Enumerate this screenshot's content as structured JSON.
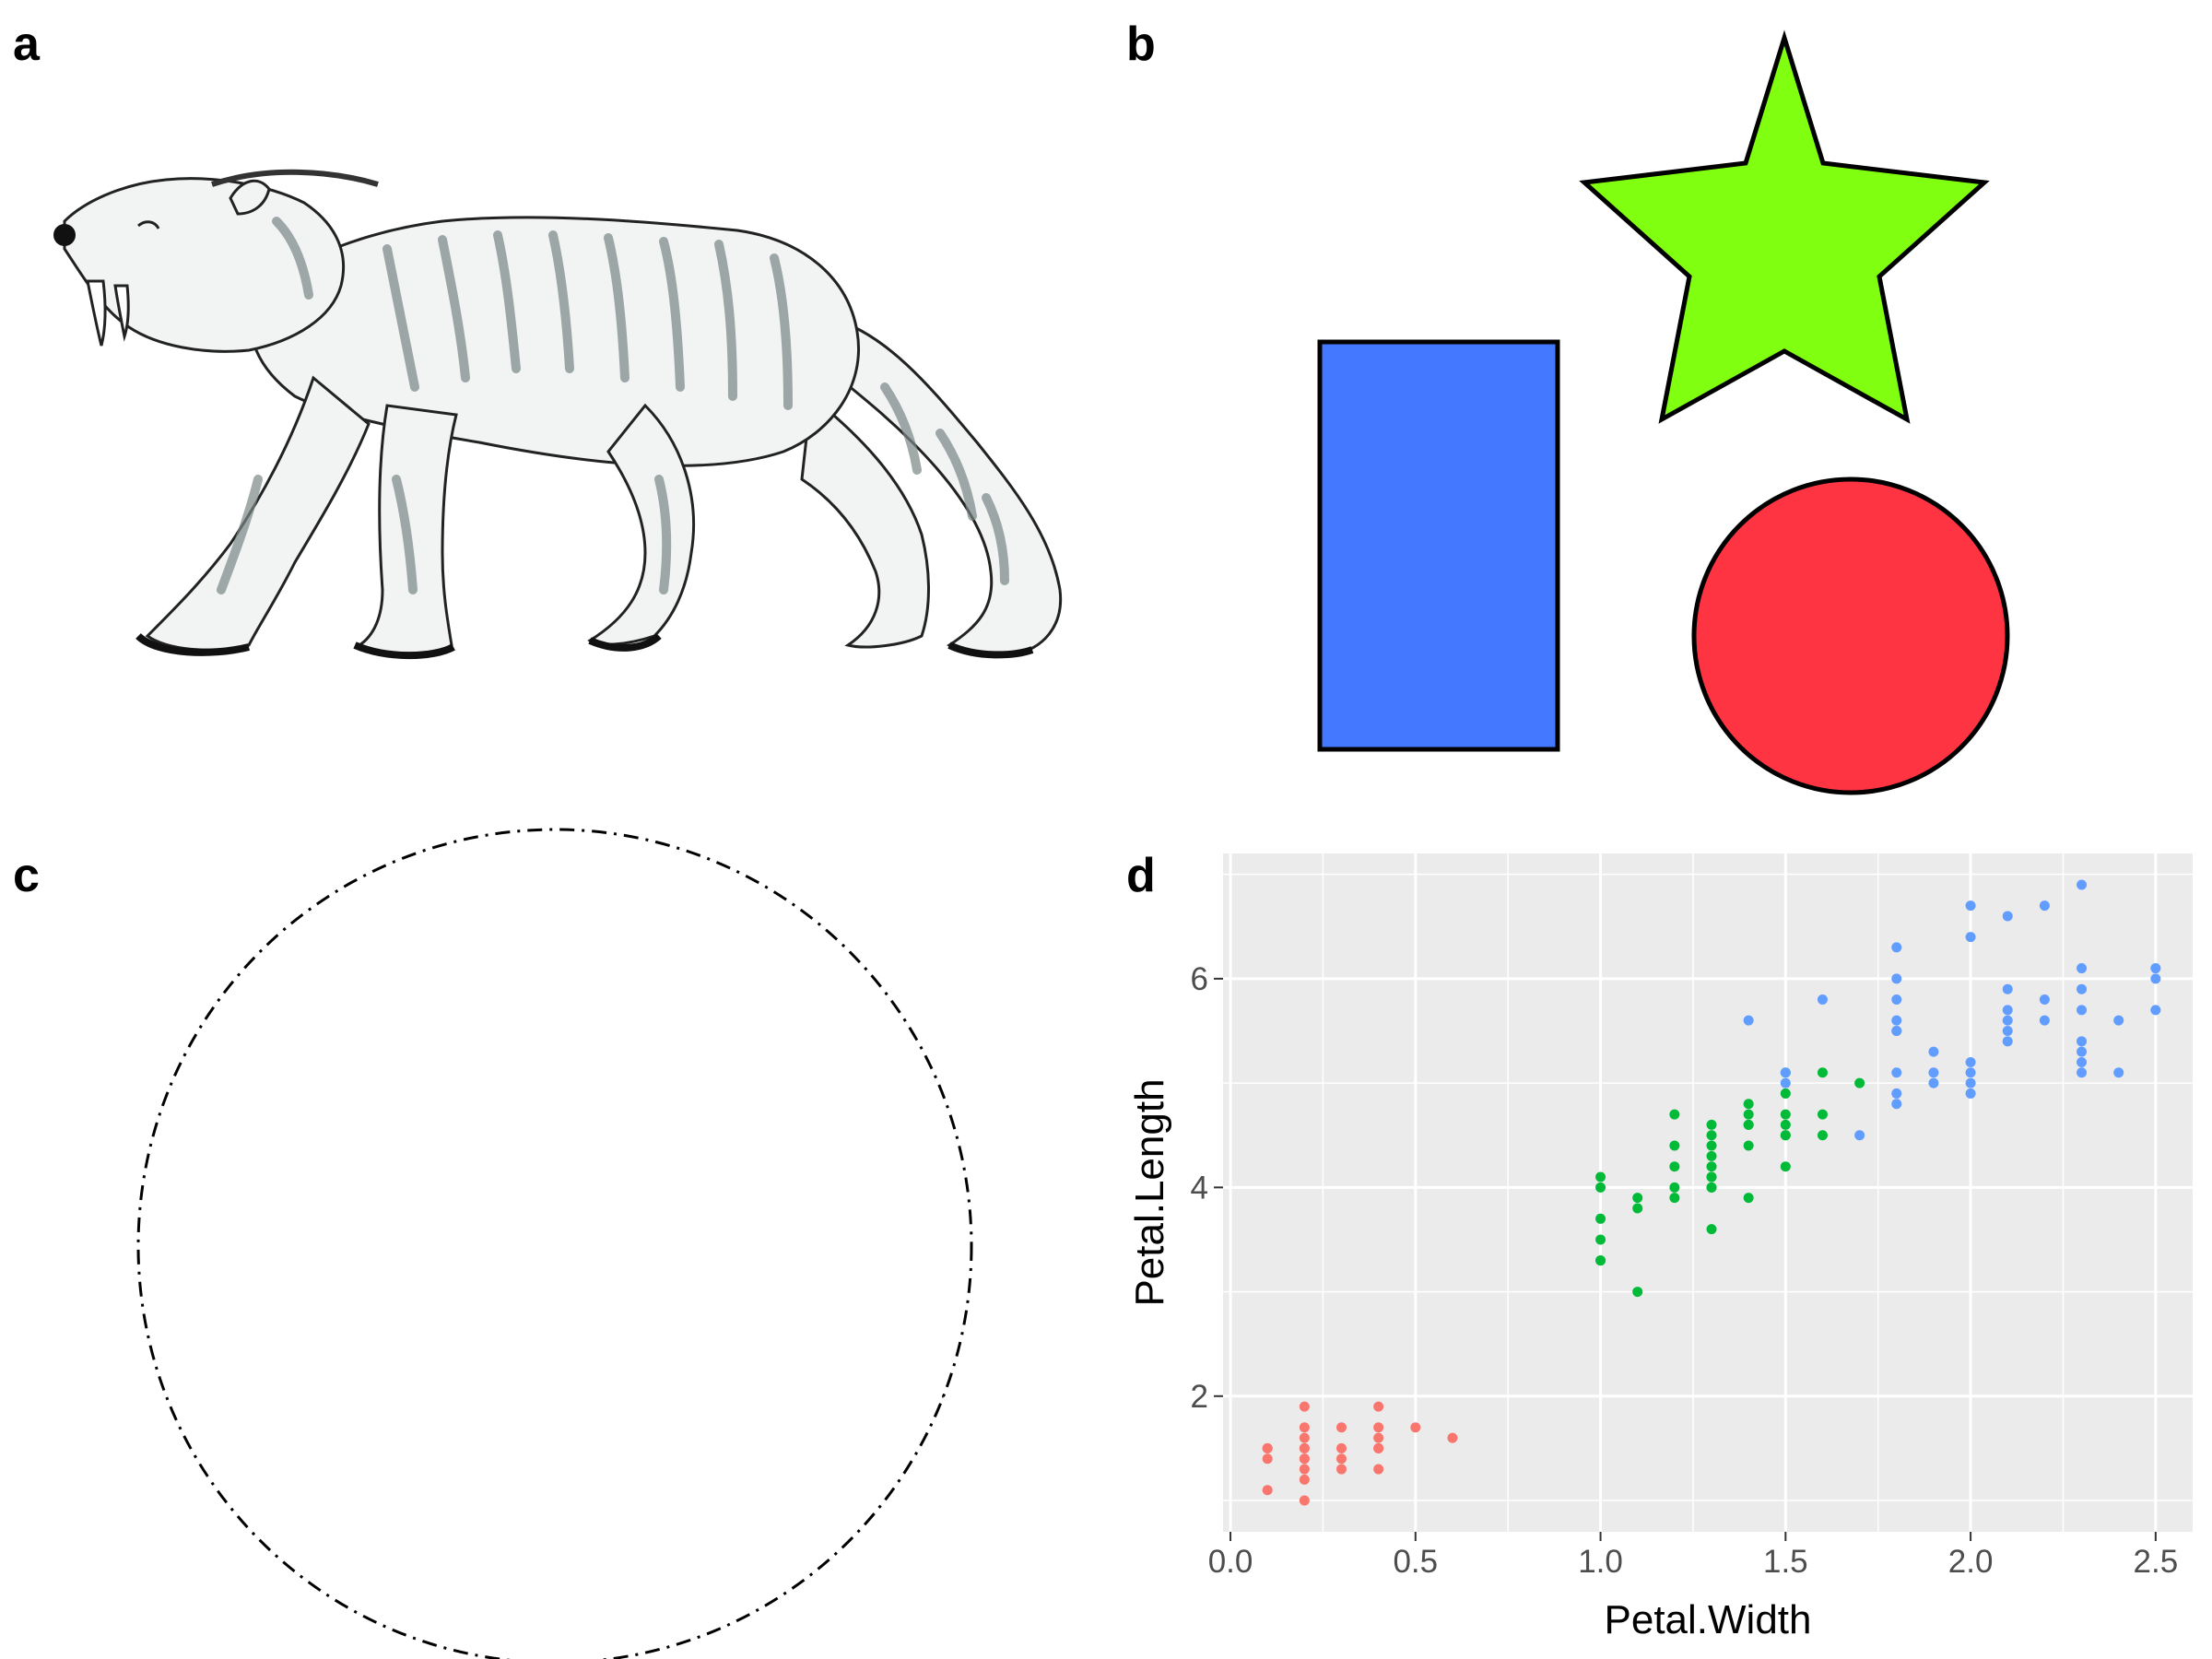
{
  "panels": {
    "a": {
      "label": "a"
    },
    "b": {
      "label": "b",
      "shapes": [
        {
          "shape": "rectangle",
          "fill": "#4479FF"
        },
        {
          "shape": "star",
          "fill": "#80FF10"
        },
        {
          "shape": "circle",
          "fill": "#FF3442"
        }
      ]
    },
    "c": {
      "label": "c"
    },
    "d": {
      "label": "d"
    }
  },
  "chart_data": {
    "type": "scatter",
    "xlabel": "Petal.Width",
    "ylabel": "Petal.Length",
    "xlim": [
      -0.02,
      2.6
    ],
    "ylim": [
      0.7,
      7.2
    ],
    "xticks": [
      "0.0",
      "0.5",
      "1.0",
      "1.5",
      "2.0",
      "2.5"
    ],
    "yticks": [
      "2",
      "4",
      "6"
    ],
    "xtick_values": [
      0,
      0.5,
      1.0,
      1.5,
      2.0,
      2.5
    ],
    "ytick_values": [
      2,
      4,
      6
    ],
    "grid": true,
    "legend": "none",
    "series": [
      {
        "color": "#F8766D",
        "x": [
          0.1,
          0.1,
          0.1,
          0.1,
          0.2,
          0.2,
          0.2,
          0.2,
          0.2,
          0.2,
          0.2,
          0.2,
          0.2,
          0.2,
          0.3,
          0.3,
          0.3,
          0.3,
          0.4,
          0.4,
          0.4,
          0.4,
          0.4,
          0.4,
          0.5,
          0.6
        ],
        "y": [
          1.1,
          1.4,
          1.5,
          1.5,
          1.0,
          1.2,
          1.3,
          1.4,
          1.5,
          1.6,
          1.7,
          1.9,
          1.4,
          1.5,
          1.3,
          1.4,
          1.5,
          1.7,
          1.3,
          1.5,
          1.6,
          1.7,
          1.9,
          1.5,
          1.7,
          1.6
        ]
      },
      {
        "color": "#00BA38",
        "x": [
          1.0,
          1.0,
          1.0,
          1.0,
          1.0,
          1.0,
          1.1,
          1.1,
          1.1,
          1.2,
          1.2,
          1.2,
          1.2,
          1.2,
          1.3,
          1.3,
          1.3,
          1.3,
          1.3,
          1.3,
          1.3,
          1.3,
          1.3,
          1.3,
          1.4,
          1.4,
          1.4,
          1.4,
          1.4,
          1.4,
          1.5,
          1.5,
          1.5,
          1.5,
          1.5,
          1.5,
          1.5,
          1.6,
          1.6,
          1.6,
          1.7
        ],
        "y": [
          3.3,
          3.5,
          3.7,
          4.0,
          4.1,
          3.3,
          3.0,
          3.8,
          3.9,
          3.9,
          4.0,
          4.2,
          4.4,
          4.7,
          3.6,
          4.0,
          4.1,
          4.2,
          4.3,
          4.4,
          4.5,
          4.6,
          4.0,
          4.1,
          3.9,
          4.4,
          4.6,
          4.7,
          4.8,
          4.6,
          4.2,
          4.5,
          4.6,
          4.7,
          4.9,
          5.1,
          4.5,
          4.5,
          4.7,
          5.1,
          5.0
        ]
      },
      {
        "color": "#619CFF",
        "x": [
          1.4,
          1.5,
          1.5,
          1.6,
          1.7,
          1.8,
          1.8,
          1.8,
          1.8,
          1.8,
          1.8,
          1.8,
          1.8,
          1.8,
          1.9,
          1.9,
          1.9,
          2.0,
          2.0,
          2.0,
          2.0,
          2.0,
          2.0,
          2.1,
          2.1,
          2.1,
          2.1,
          2.1,
          2.1,
          2.2,
          2.2,
          2.2,
          2.3,
          2.3,
          2.3,
          2.3,
          2.3,
          2.3,
          2.3,
          2.3,
          2.4,
          2.4,
          2.5,
          2.5,
          2.5
        ],
        "y": [
          5.6,
          5.0,
          5.1,
          5.8,
          4.5,
          4.8,
          4.9,
          5.1,
          5.5,
          5.6,
          5.8,
          6.0,
          6.3,
          5.5,
          5.0,
          5.1,
          5.3,
          4.9,
          5.0,
          5.1,
          5.2,
          6.4,
          6.7,
          5.4,
          5.5,
          5.6,
          5.7,
          5.9,
          6.6,
          5.6,
          5.8,
          6.7,
          5.1,
          5.2,
          5.3,
          5.4,
          5.7,
          5.9,
          6.1,
          6.9,
          5.1,
          5.6,
          5.7,
          6.0,
          6.1
        ]
      }
    ]
  }
}
